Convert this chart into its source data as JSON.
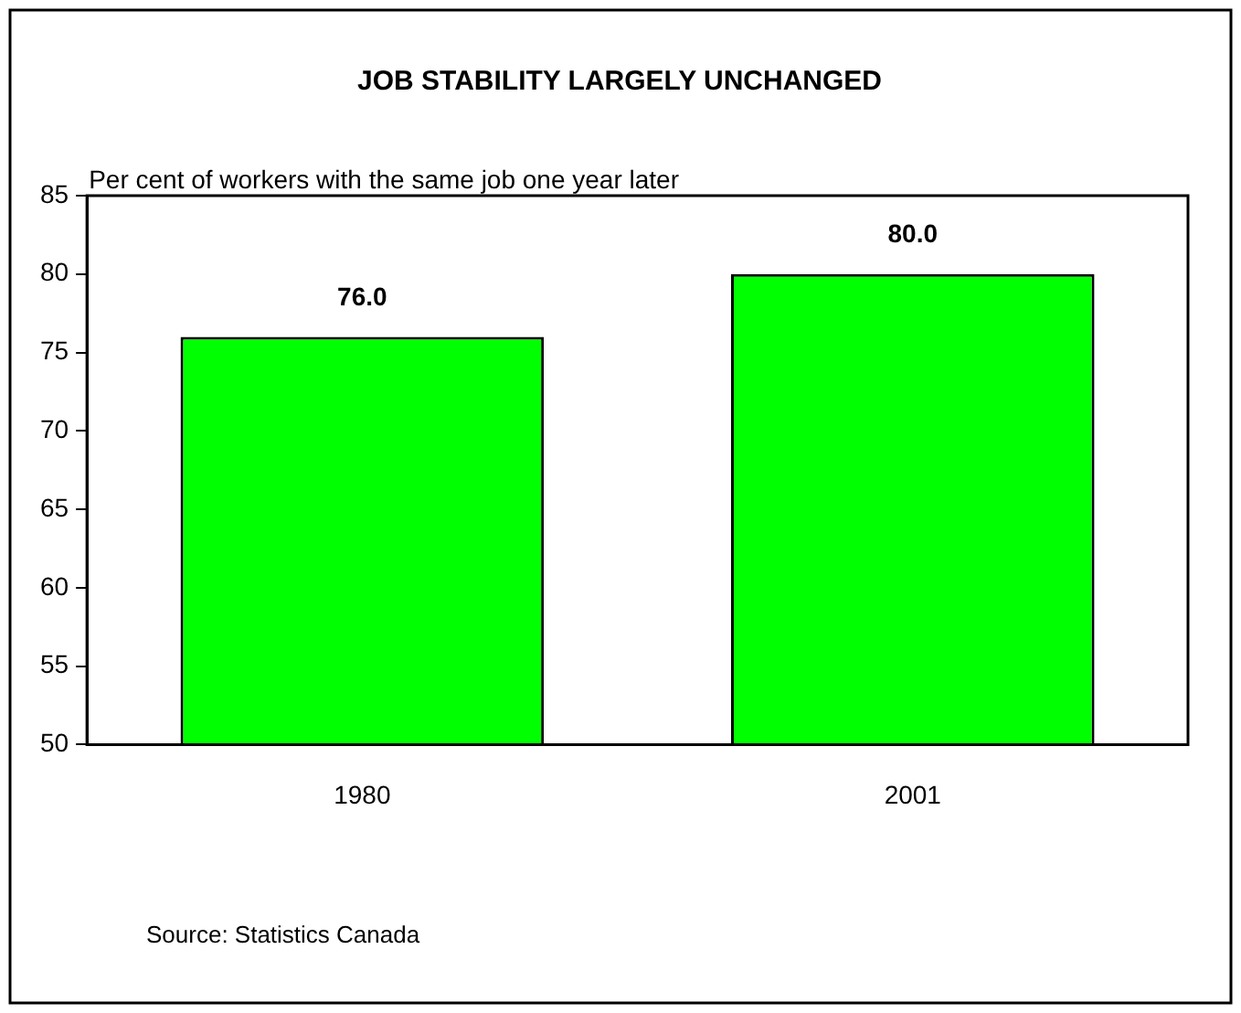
{
  "chart_data": {
    "type": "bar",
    "title": "JOB STABILITY LARGELY UNCHANGED",
    "ylabel": "Per cent of workers with the same job one year later",
    "categories": [
      "1980",
      "2001"
    ],
    "values": [
      76.0,
      80.0
    ],
    "value_labels": [
      "76.0",
      "80.0"
    ],
    "color": "#00ff00",
    "ylim": [
      50,
      85
    ],
    "yticks": [
      50,
      55,
      60,
      65,
      70,
      75,
      80,
      85
    ],
    "grid": false,
    "legend": false,
    "annotations": [
      "Source: Statistics Canada"
    ]
  }
}
